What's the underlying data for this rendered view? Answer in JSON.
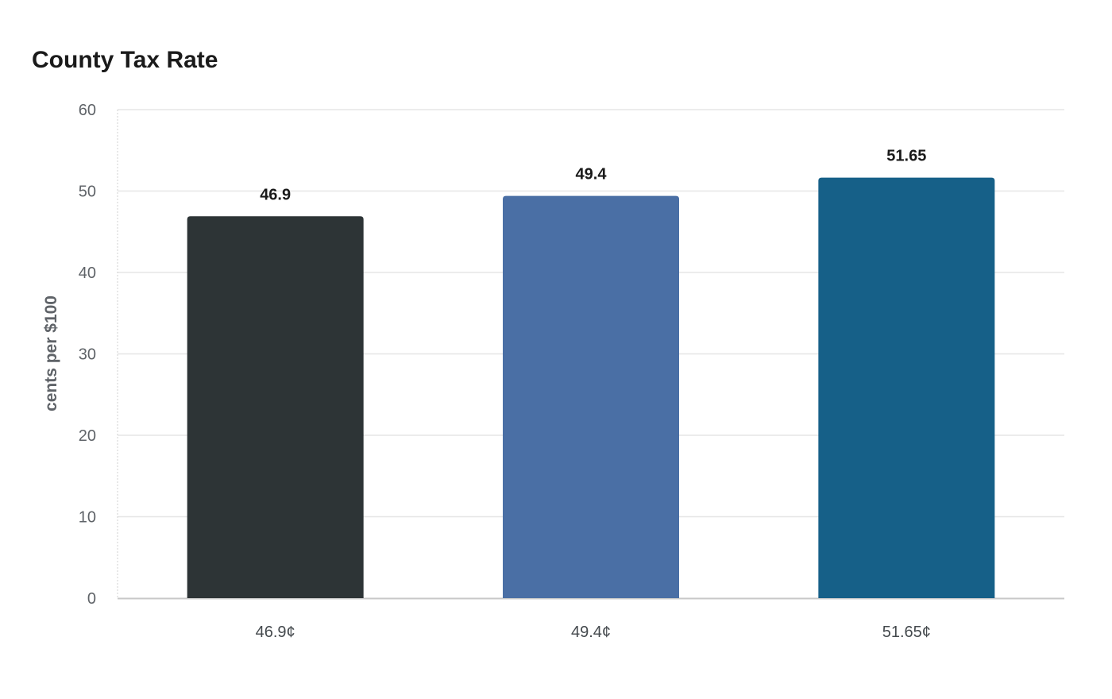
{
  "chart_data": {
    "type": "bar",
    "title": "County Tax Rate",
    "xlabel": "",
    "ylabel": "cents per $100",
    "categories": [
      "46.9¢",
      "49.4¢",
      "51.65¢"
    ],
    "values": [
      46.9,
      49.4,
      51.65
    ],
    "data_labels": [
      "46.9",
      "49.4",
      "51.65"
    ],
    "colors": [
      "#2d3436",
      "#4a6fa5",
      "#166088"
    ],
    "ylim": [
      0,
      60
    ],
    "yticks": [
      0,
      10,
      20,
      30,
      40,
      50,
      60
    ],
    "grid": true,
    "legend": "none"
  }
}
